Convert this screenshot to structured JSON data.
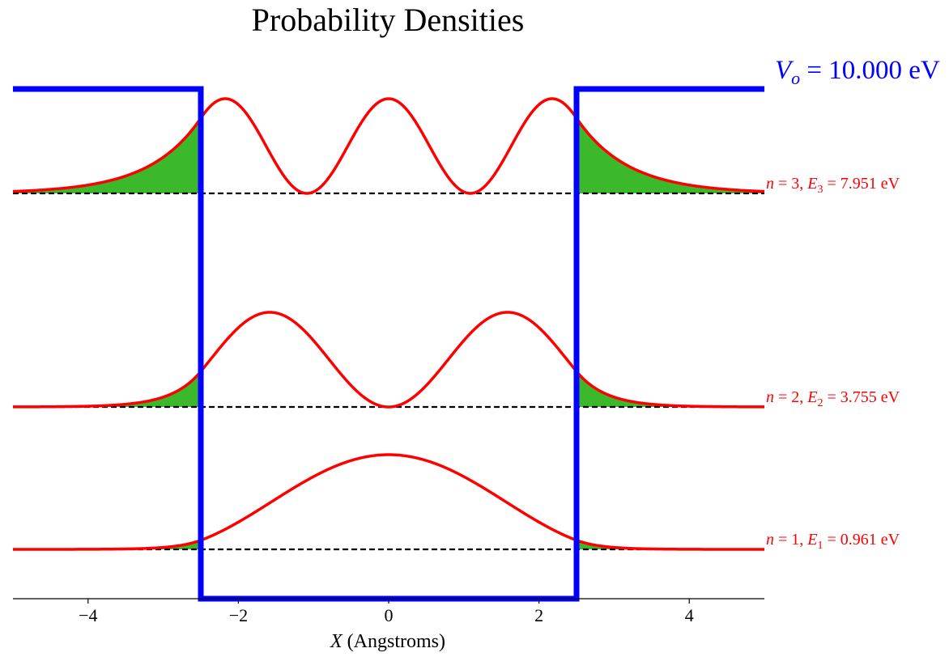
{
  "chart_data": {
    "type": "line",
    "title": "Probability Densities",
    "xlabel_var": "X",
    "xlabel_unit": " (Angstroms)",
    "xlim": [
      -5,
      5
    ],
    "x_ticks": [
      -4,
      -2,
      0,
      2,
      4
    ],
    "x_tick_labels": [
      "−4",
      "−2",
      "0",
      "2",
      "4"
    ],
    "well": {
      "half_width": 2.5,
      "V0_eV": 10.0
    },
    "potential_label": {
      "var": "V",
      "sub": "o",
      "eq": " = ",
      "value": "10.000",
      "unit": " eV"
    },
    "levels": [
      {
        "n": 1,
        "E_eV": 0.961,
        "label_n": "n = 1, ",
        "label_E": "E",
        "label_sub": "1",
        "label_val": " = 0.961 eV"
      },
      {
        "n": 2,
        "E_eV": 3.755,
        "label_n": "n = 2, ",
        "label_E": "E",
        "label_sub": "2",
        "label_val": " = 3.755 eV"
      },
      {
        "n": 3,
        "E_eV": 7.951,
        "label_n": "n = 3, ",
        "label_E": "E",
        "label_sub": "3",
        "label_val": " = 7.951 eV"
      }
    ],
    "colors": {
      "potential": "#0000ff",
      "density": "#ff0000",
      "tunneling_fill": "#3cb92a",
      "baseline": "#000000",
      "level_label": "#ff0000",
      "potential_label": "#0000ff"
    }
  }
}
